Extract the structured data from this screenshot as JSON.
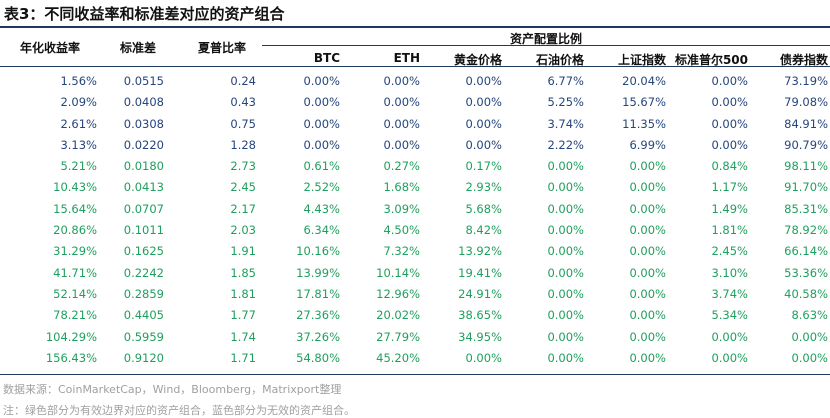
{
  "title": "表3：不同收益率和标准差对应的资产组合",
  "headers": {
    "return": "年化收益率",
    "std": "标准差",
    "sharpe": "夏普比率",
    "group": "资产配置比例",
    "assets": [
      "BTC",
      "ETH",
      "黄金价格",
      "石油价格",
      "上证指数",
      "标准普尔500",
      "债券指数"
    ]
  },
  "rows": [
    {
      "status": "inefficient",
      "cells": [
        "1.56%",
        "0.0515",
        "0.24",
        "0.00%",
        "0.00%",
        "0.00%",
        "6.77%",
        "20.04%",
        "0.00%",
        "73.19%"
      ]
    },
    {
      "status": "inefficient",
      "cells": [
        "2.09%",
        "0.0408",
        "0.43",
        "0.00%",
        "0.00%",
        "0.00%",
        "5.25%",
        "15.67%",
        "0.00%",
        "79.08%"
      ]
    },
    {
      "status": "inefficient",
      "cells": [
        "2.61%",
        "0.0308",
        "0.75",
        "0.00%",
        "0.00%",
        "0.00%",
        "3.74%",
        "11.35%",
        "0.00%",
        "84.91%"
      ]
    },
    {
      "status": "inefficient",
      "cells": [
        "3.13%",
        "0.0220",
        "1.28",
        "0.00%",
        "0.00%",
        "0.00%",
        "2.22%",
        "6.99%",
        "0.00%",
        "90.79%"
      ]
    },
    {
      "status": "efficient",
      "cells": [
        "5.21%",
        "0.0180",
        "2.73",
        "0.61%",
        "0.27%",
        "0.17%",
        "0.00%",
        "0.00%",
        "0.84%",
        "98.11%"
      ]
    },
    {
      "status": "efficient",
      "cells": [
        "10.43%",
        "0.0413",
        "2.45",
        "2.52%",
        "1.68%",
        "2.93%",
        "0.00%",
        "0.00%",
        "1.17%",
        "91.70%"
      ]
    },
    {
      "status": "efficient",
      "cells": [
        "15.64%",
        "0.0707",
        "2.17",
        "4.43%",
        "3.09%",
        "5.68%",
        "0.00%",
        "0.00%",
        "1.49%",
        "85.31%"
      ]
    },
    {
      "status": "efficient",
      "cells": [
        "20.86%",
        "0.1011",
        "2.03",
        "6.34%",
        "4.50%",
        "8.42%",
        "0.00%",
        "0.00%",
        "1.81%",
        "78.92%"
      ]
    },
    {
      "status": "efficient",
      "cells": [
        "31.29%",
        "0.1625",
        "1.91",
        "10.16%",
        "7.32%",
        "13.92%",
        "0.00%",
        "0.00%",
        "2.45%",
        "66.14%"
      ]
    },
    {
      "status": "efficient",
      "cells": [
        "41.71%",
        "0.2242",
        "1.85",
        "13.99%",
        "10.14%",
        "19.41%",
        "0.00%",
        "0.00%",
        "3.10%",
        "53.36%"
      ]
    },
    {
      "status": "efficient",
      "cells": [
        "52.14%",
        "0.2859",
        "1.81",
        "17.81%",
        "12.96%",
        "24.91%",
        "0.00%",
        "0.00%",
        "3.74%",
        "40.58%"
      ]
    },
    {
      "status": "efficient",
      "cells": [
        "78.21%",
        "0.4405",
        "1.77",
        "27.36%",
        "20.02%",
        "38.65%",
        "0.00%",
        "0.00%",
        "5.34%",
        "8.63%"
      ]
    },
    {
      "status": "efficient",
      "cells": [
        "104.29%",
        "0.5959",
        "1.74",
        "37.26%",
        "27.79%",
        "34.95%",
        "0.00%",
        "0.00%",
        "0.00%",
        "0.00%"
      ]
    },
    {
      "status": "efficient",
      "cells": [
        "156.43%",
        "0.9120",
        "1.71",
        "54.80%",
        "45.20%",
        "0.00%",
        "0.00%",
        "0.00%",
        "0.00%",
        "0.00%"
      ]
    }
  ],
  "colors": {
    "efficient": "#1f9f5e",
    "inefficient": "#26457c",
    "rule": "#1f3a5f"
  },
  "source": "数据来源：CoinMarketCap，Wind，Bloomberg，Matrixport整理",
  "note": "注：绿色部分为有效边界对应的资产组合，蓝色部分为无效的资产组合。"
}
